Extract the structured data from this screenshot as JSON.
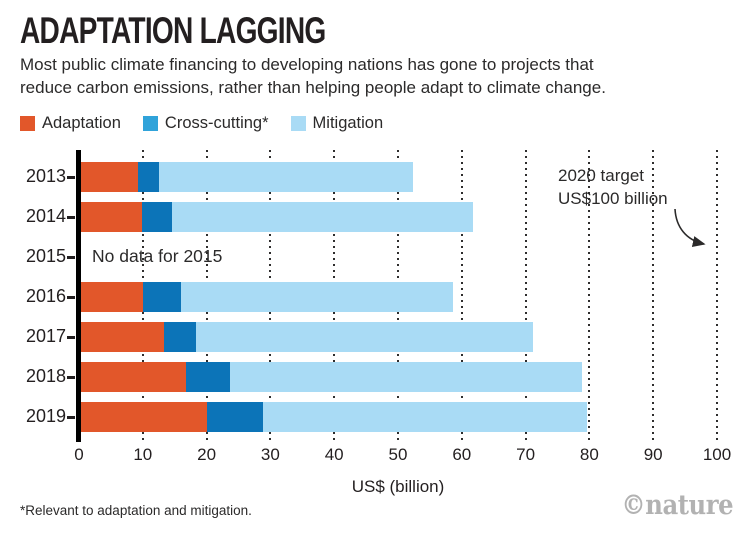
{
  "header": {
    "title": "ADAPTATION LAGGING",
    "subtitle_line1": "Most public climate financing to developing nations has gone to projects that",
    "subtitle_line2": "reduce carbon emissions, rather than helping people adapt to climate change."
  },
  "legend": [
    {
      "label": "Adaptation",
      "color": "#E2572A"
    },
    {
      "label": "Cross-cutting*",
      "color": "#30A3DA"
    },
    {
      "label": "Mitigation",
      "color": "#A9DBF5"
    }
  ],
  "chart_data": {
    "type": "bar",
    "orientation": "horizontal",
    "stacked": true,
    "categories": [
      "2013",
      "2014",
      "2015",
      "2016",
      "2017",
      "2018",
      "2019"
    ],
    "series": [
      {
        "name": "Adaptation",
        "color": "#E2572A",
        "values": [
          9.3,
          9.9,
          null,
          10.1,
          13.3,
          16.8,
          20.1
        ]
      },
      {
        "name": "Cross-cutting*",
        "color": "#0C74B8",
        "values": [
          3.2,
          4.7,
          null,
          5.9,
          5.1,
          6.9,
          8.7
        ]
      },
      {
        "name": "Mitigation",
        "color": "#A9DBF5",
        "values": [
          39.8,
          47.2,
          null,
          42.6,
          52.8,
          55.2,
          50.8
        ]
      }
    ],
    "totals": [
      52.3,
      61.8,
      null,
      58.6,
      71.2,
      78.9,
      79.6
    ],
    "no_data": {
      "category": "2015",
      "label": "No data for 2015"
    },
    "xlabel": "US$ (billion)",
    "xlim": [
      0,
      100
    ],
    "xticks": [
      0,
      10,
      20,
      30,
      40,
      50,
      60,
      70,
      80,
      90,
      100
    ],
    "grid": "dotted-vertical",
    "legend_position": "top",
    "annotation": {
      "line1": "2020 target",
      "line2": "US$100 billion",
      "points_to": 100
    }
  },
  "footnote": "*Relevant to adaptation and mitigation.",
  "credit": "©nature"
}
